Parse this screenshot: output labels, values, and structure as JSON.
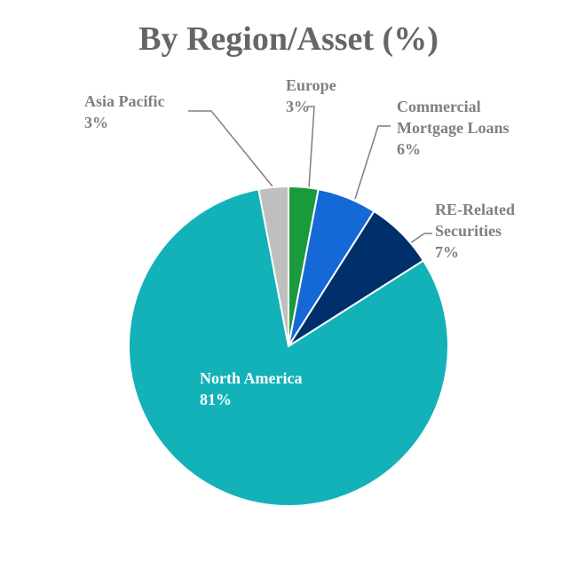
{
  "chart_data": {
    "type": "pie",
    "title": "By Region/Asset (%)",
    "categories": [
      "Europe",
      "Commercial Mortgage Loans",
      "RE-Related Securities",
      "North America",
      "Asia Pacific"
    ],
    "values": [
      3,
      6,
      7,
      81,
      3
    ],
    "value_labels": [
      "3%",
      "6%",
      "7%",
      "81%",
      "3%"
    ],
    "colors": [
      "#1a9a3a",
      "#1569d6",
      "#00306b",
      "#13b2b9",
      "#bfbfbf"
    ]
  }
}
